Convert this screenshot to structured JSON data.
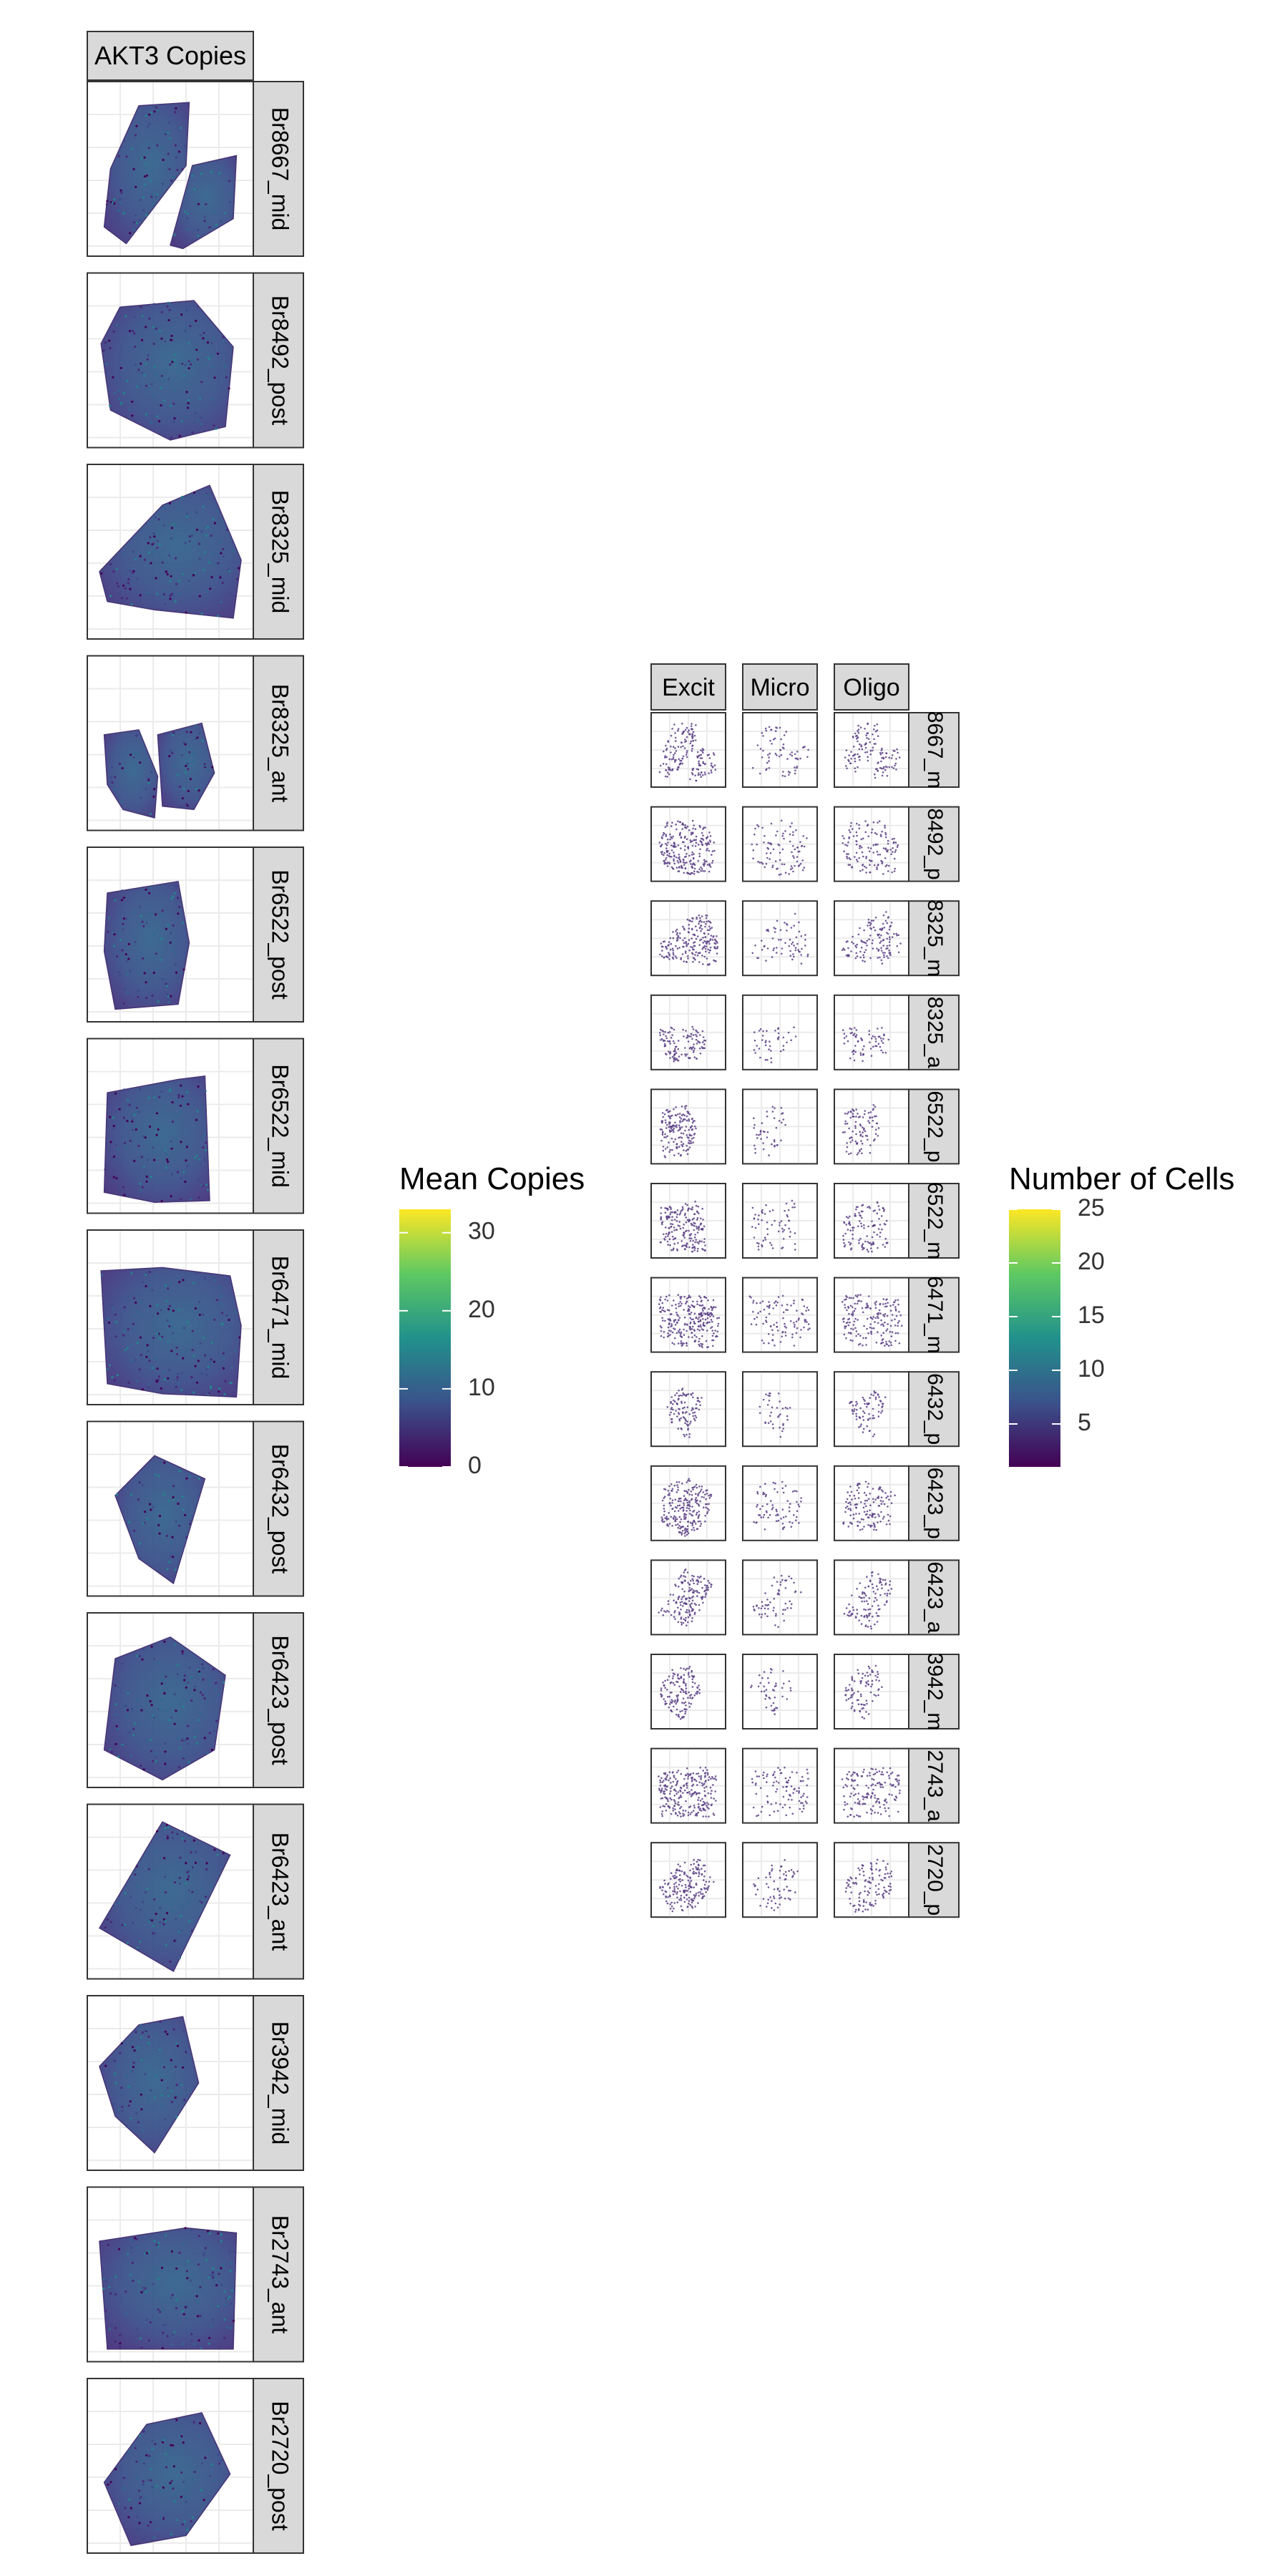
{
  "chart_data": [
    {
      "type": "heatmap",
      "title": "",
      "facet_header": "AKT3 Copies",
      "xlabel": "",
      "ylabel": "",
      "grid": true,
      "facets": [
        {
          "label": "Br8667_mid",
          "shape": "akt3_0"
        },
        {
          "label": "Br8492_post",
          "shape": "akt3_1"
        },
        {
          "label": "Br8325_mid",
          "shape": "akt3_2"
        },
        {
          "label": "Br8325_ant",
          "shape": "akt3_3"
        },
        {
          "label": "Br6522_post",
          "shape": "akt3_4"
        },
        {
          "label": "Br6522_mid",
          "shape": "akt3_5"
        },
        {
          "label": "Br6471_mid",
          "shape": "akt3_6"
        },
        {
          "label": "Br6432_post",
          "shape": "akt3_7"
        },
        {
          "label": "Br6423_post",
          "shape": "akt3_8"
        },
        {
          "label": "Br6423_ant",
          "shape": "akt3_9"
        },
        {
          "label": "Br3942_mid",
          "shape": "akt3_10"
        },
        {
          "label": "Br2743_ant",
          "shape": "akt3_11"
        },
        {
          "label": "Br2720_post",
          "shape": "akt3_12"
        }
      ],
      "legend": {
        "title": "Mean Copies",
        "placement": "right",
        "range": [
          0,
          33
        ],
        "ticks": [
          0,
          10,
          20,
          30
        ],
        "colors": [
          "#440154",
          "#3b528b",
          "#21918c",
          "#5ec962",
          "#fde725"
        ]
      }
    },
    {
      "type": "scatter",
      "title": "",
      "xlabel": "",
      "ylabel": "",
      "grid": true,
      "columns": [
        "Excit",
        "Micro",
        "Oligo"
      ],
      "rows": [
        "8667_m",
        "8492_p",
        "8325_m",
        "8325_a",
        "6522_p",
        "6522_m",
        "6471_m",
        "6432_p",
        "6423_p",
        "6423_a",
        "3942_m",
        "2743_a",
        "2720_p"
      ],
      "row_shapes": [
        "akt3_0",
        "akt3_1",
        "akt3_2",
        "akt3_3",
        "akt3_4",
        "akt3_5",
        "akt3_6",
        "akt3_7",
        "akt3_8",
        "akt3_9",
        "akt3_10",
        "akt3_11",
        "akt3_12"
      ],
      "point_color": "#5b3f85",
      "column_density": [
        1.0,
        0.35,
        0.6
      ],
      "legend": {
        "title": "Number of Cells",
        "placement": "right",
        "range": [
          1,
          25
        ],
        "ticks": [
          5,
          10,
          15,
          20,
          25
        ],
        "colors": [
          "#440154",
          "#3b528b",
          "#21918c",
          "#5ec962",
          "#fde725"
        ]
      }
    }
  ],
  "colors": {
    "strip_fill": "#d9d9d9",
    "strip_border": "#333333",
    "panel_border": "#333333",
    "grid": "#ebebeb"
  }
}
